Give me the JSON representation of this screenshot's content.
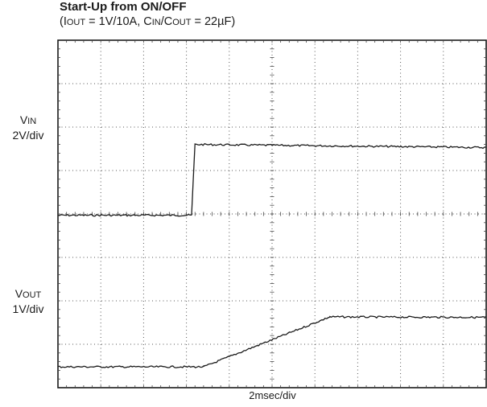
{
  "chart_data": {
    "type": "line",
    "title": "Start-Up from ON/OFF",
    "subtitle": {
      "open": "(",
      "iout_i": "I",
      "iout_sub": "OUT",
      "iout_rest": " = 1V/10A, C",
      "cin_sub": "IN",
      "slash": "/C",
      "cout_sub": "OUT",
      "close": " = 22µF)"
    },
    "xlabel": "2msec/div",
    "x_unit": "div",
    "y_unit": "div",
    "xlim": [
      0,
      10
    ],
    "ylim": [
      0,
      8
    ],
    "grid": true,
    "series": [
      {
        "name": "VIN",
        "name_main": "V",
        "name_sub": "IN",
        "scale": "2V/div",
        "label_level": 6.0,
        "x": [
          0,
          3.12,
          3.16,
          3.2,
          10
        ],
        "y": [
          3.97,
          3.97,
          4.8,
          5.6,
          5.53
        ],
        "color": "#1a1a1a"
      },
      {
        "name": "VOUT",
        "name_main": "V",
        "name_sub": "OUT",
        "scale": "1V/div",
        "label_level": 2.0,
        "x": [
          0,
          3.4,
          6.35,
          10
        ],
        "y": [
          0.48,
          0.48,
          1.63,
          1.62
        ],
        "color": "#1a1a1a"
      }
    ]
  }
}
